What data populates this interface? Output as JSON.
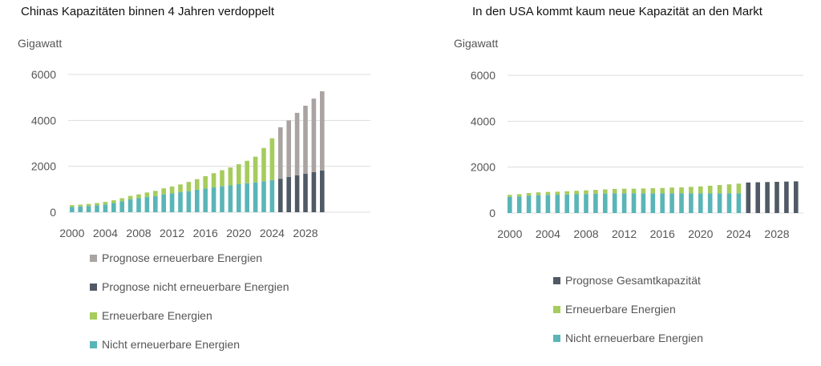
{
  "colors": {
    "forecast_renewable": "#a9a4a1",
    "forecast_nonrenewable": "#4f5a66",
    "renewable": "#a6cc5c",
    "nonrenewable": "#5ab5b7",
    "forecast_total": "#4f5a66",
    "grid": "#dddddd"
  },
  "chart_data": [
    {
      "type": "bar",
      "stacked": true,
      "title": "Chinas Kapazitäten binnen 4 Jahren verdoppelt",
      "ylabel": "Gigawatt",
      "ylim": [
        0,
        6000
      ],
      "yticks": [
        0,
        2000,
        4000,
        6000
      ],
      "xticks": [
        "2000",
        "2004",
        "2008",
        "2012",
        "2016",
        "2020",
        "2024",
        "2028"
      ],
      "categories": [
        "2000",
        "2001",
        "2002",
        "2003",
        "2004",
        "2005",
        "2006",
        "2007",
        "2008",
        "2009",
        "2010",
        "2011",
        "2012",
        "2013",
        "2014",
        "2015",
        "2016",
        "2017",
        "2018",
        "2019",
        "2020",
        "2021",
        "2022",
        "2023",
        "2024",
        "2025",
        "2026",
        "2027",
        "2028",
        "2029",
        "2030"
      ],
      "series": [
        {
          "name": "Nicht erneuerbare Energien",
          "color_key": "nonrenewable",
          "values": [
            230,
            250,
            270,
            300,
            340,
            400,
            480,
            560,
            610,
            660,
            700,
            780,
            820,
            870,
            920,
            980,
            1030,
            1080,
            1130,
            1170,
            1220,
            1260,
            1300,
            1350,
            1400,
            null,
            null,
            null,
            null,
            null,
            null
          ]
        },
        {
          "name": "Erneuerbare Energien",
          "color_key": "renewable",
          "stack_on": "Nicht erneuerbare Energien",
          "values": [
            80,
            80,
            90,
            100,
            110,
            120,
            130,
            150,
            170,
            200,
            230,
            260,
            300,
            340,
            400,
            460,
            540,
            620,
            700,
            780,
            870,
            980,
            1120,
            1450,
            1820,
            null,
            null,
            null,
            null,
            null,
            null
          ]
        },
        {
          "name": "Prognose nicht erneuerbare Energien",
          "color_key": "forecast_nonrenewable",
          "values": [
            null,
            null,
            null,
            null,
            null,
            null,
            null,
            null,
            null,
            null,
            null,
            null,
            null,
            null,
            null,
            null,
            null,
            null,
            null,
            null,
            null,
            null,
            null,
            null,
            null,
            1460,
            1540,
            1610,
            1680,
            1750,
            1820
          ]
        },
        {
          "name": "Prognose erneuerbare Energien",
          "color_key": "forecast_renewable",
          "stack_on": "Prognose nicht erneuerbare Energien",
          "values": [
            null,
            null,
            null,
            null,
            null,
            null,
            null,
            null,
            null,
            null,
            null,
            null,
            null,
            null,
            null,
            null,
            null,
            null,
            null,
            null,
            null,
            null,
            null,
            null,
            null,
            2240,
            2460,
            2720,
            2960,
            3200,
            3450
          ]
        }
      ],
      "legend": [
        "Prognose erneuerbare Energien",
        "Prognose nicht erneuerbare Energien",
        "Erneuerbare Energien",
        "Nicht erneuerbare Energien"
      ]
    },
    {
      "type": "bar",
      "stacked": true,
      "title": "In den USA kommt kaum neue Kapazität an den Markt",
      "ylabel": "Gigawatt",
      "ylim": [
        0,
        6000
      ],
      "yticks": [
        0,
        2000,
        4000,
        6000
      ],
      "xticks": [
        "2000",
        "2004",
        "2008",
        "2012",
        "2016",
        "2020",
        "2024",
        "2028"
      ],
      "categories": [
        "2000",
        "2001",
        "2002",
        "2003",
        "2004",
        "2005",
        "2006",
        "2007",
        "2008",
        "2009",
        "2010",
        "2011",
        "2012",
        "2013",
        "2014",
        "2015",
        "2016",
        "2017",
        "2018",
        "2019",
        "2020",
        "2021",
        "2022",
        "2023",
        "2024",
        "2025",
        "2026",
        "2027",
        "2028",
        "2029",
        "2030"
      ],
      "series": [
        {
          "name": "Nicht erneuerbare Energien",
          "color_key": "nonrenewable",
          "values": [
            700,
            720,
            760,
            780,
            790,
            800,
            810,
            820,
            830,
            840,
            850,
            860,
            860,
            860,
            860,
            860,
            860,
            860,
            860,
            860,
            860,
            860,
            860,
            860,
            860,
            null,
            null,
            null,
            null,
            null,
            null
          ]
        },
        {
          "name": "Erneuerbare Energien",
          "color_key": "renewable",
          "stack_on": "Nicht erneuerbare Energien",
          "values": [
            90,
            100,
            110,
            120,
            130,
            130,
            140,
            150,
            160,
            170,
            180,
            190,
            200,
            200,
            210,
            220,
            230,
            250,
            260,
            280,
            300,
            330,
            360,
            390,
            420,
            null,
            null,
            null,
            null,
            null,
            null
          ]
        },
        {
          "name": "Prognose Gesamtkapazität",
          "color_key": "forecast_total",
          "values": [
            null,
            null,
            null,
            null,
            null,
            null,
            null,
            null,
            null,
            null,
            null,
            null,
            null,
            null,
            null,
            null,
            null,
            null,
            null,
            null,
            null,
            null,
            null,
            null,
            null,
            1330,
            1340,
            1350,
            1360,
            1370,
            1380
          ]
        }
      ],
      "legend": [
        "Prognose Gesamtkapazität",
        "Erneuerbare Energien",
        "Nicht erneuerbare Energien"
      ]
    }
  ]
}
